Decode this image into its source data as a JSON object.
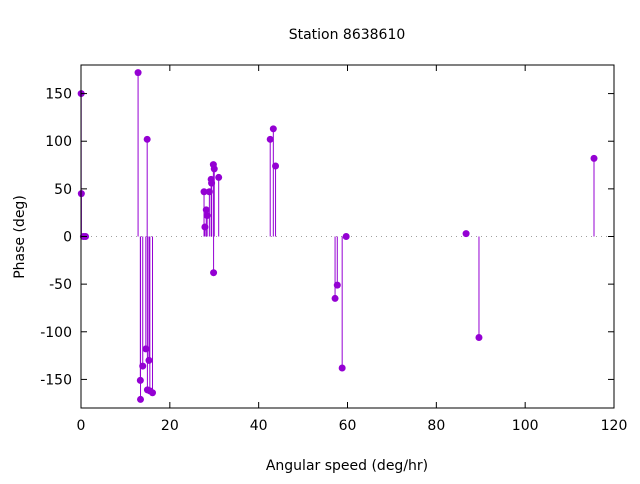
{
  "chart_data": {
    "type": "scatter",
    "style": "impulses-with-points",
    "title": "Station 8638610",
    "xlabel": "Angular speed (deg/hr)",
    "ylabel": "Phase (deg)",
    "xlim": [
      0,
      120
    ],
    "ylim": [
      -180,
      180
    ],
    "xticks": [
      0,
      20,
      40,
      60,
      80,
      100,
      120
    ],
    "yticks": [
      -150,
      -100,
      -50,
      0,
      50,
      100,
      150
    ],
    "grid": false,
    "zero_line": true,
    "color": "#9400d3",
    "points": [
      {
        "x": 0.04,
        "y": 150
      },
      {
        "x": 0.08,
        "y": 45
      },
      {
        "x": 0.54,
        "y": 0
      },
      {
        "x": 1.02,
        "y": 0
      },
      {
        "x": 12.85,
        "y": 172
      },
      {
        "x": 13.36,
        "y": -151
      },
      {
        "x": 13.4,
        "y": -171
      },
      {
        "x": 13.9,
        "y": -136
      },
      {
        "x": 14.6,
        "y": -118
      },
      {
        "x": 14.9,
        "y": 102
      },
      {
        "x": 14.95,
        "y": -161
      },
      {
        "x": 15.3,
        "y": -130
      },
      {
        "x": 15.5,
        "y": -162
      },
      {
        "x": 16.1,
        "y": -164
      },
      {
        "x": 27.7,
        "y": 47
      },
      {
        "x": 27.9,
        "y": 10
      },
      {
        "x": 28.2,
        "y": 28
      },
      {
        "x": 28.4,
        "y": 22
      },
      {
        "x": 28.9,
        "y": 47
      },
      {
        "x": 29.3,
        "y": 60
      },
      {
        "x": 29.4,
        "y": 56
      },
      {
        "x": 29.8,
        "y": 75.5
      },
      {
        "x": 29.85,
        "y": -38
      },
      {
        "x": 30.0,
        "y": 71
      },
      {
        "x": 31.0,
        "y": 62
      },
      {
        "x": 42.6,
        "y": 102
      },
      {
        "x": 43.3,
        "y": 113
      },
      {
        "x": 43.8,
        "y": 74
      },
      {
        "x": 57.2,
        "y": -65
      },
      {
        "x": 57.7,
        "y": -51
      },
      {
        "x": 58.8,
        "y": -138
      },
      {
        "x": 59.7,
        "y": 0
      },
      {
        "x": 86.7,
        "y": 3
      },
      {
        "x": 89.6,
        "y": -106
      },
      {
        "x": 115.5,
        "y": 82
      }
    ]
  }
}
